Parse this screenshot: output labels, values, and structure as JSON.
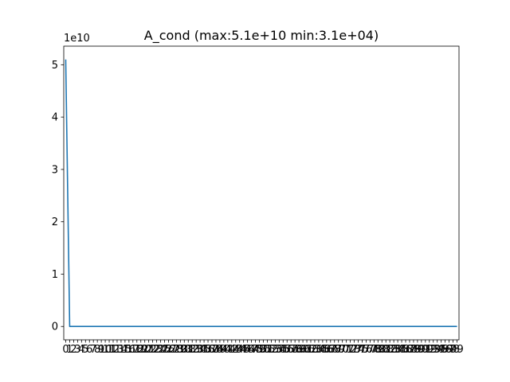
{
  "chart_data": {
    "type": "line",
    "title": "A_cond (max:5.1e+10 min:3.1e+04)",
    "xlabel": "",
    "ylabel": "",
    "y_offset_label": "1e10",
    "x": [
      0,
      1,
      2,
      3,
      4,
      5,
      6,
      7,
      8,
      9,
      10,
      11,
      12,
      13,
      14,
      15,
      16,
      17,
      18,
      19,
      20,
      21,
      22,
      23,
      24,
      25,
      26,
      27,
      28,
      29,
      30,
      31,
      32,
      33,
      34,
      35,
      36,
      37,
      38,
      39,
      40,
      41,
      42,
      43,
      44,
      45,
      46,
      47,
      48,
      49,
      50,
      51,
      52,
      53,
      54,
      55,
      56,
      57,
      58,
      59,
      60,
      61,
      62,
      63,
      64,
      65,
      66,
      67,
      68,
      69,
      70,
      71,
      72,
      73,
      74,
      75,
      76,
      77,
      78,
      79,
      80,
      81,
      82,
      83,
      84,
      85,
      86,
      87,
      88,
      89,
      90,
      91,
      92,
      93,
      94,
      95,
      96,
      97,
      98,
      99
    ],
    "x_tick_labels": [
      "0",
      "1",
      "2",
      "3",
      "4",
      "5",
      "6",
      "7",
      "8",
      "9",
      "10",
      "11",
      "12",
      "13",
      "14",
      "15",
      "16",
      "17",
      "18",
      "19",
      "20",
      "21",
      "22",
      "23",
      "24",
      "25",
      "26",
      "27",
      "28",
      "29",
      "30",
      "31",
      "32",
      "33",
      "34",
      "35",
      "36",
      "37",
      "38",
      "39",
      "40",
      "41",
      "42",
      "43",
      "44",
      "45",
      "46",
      "47",
      "48",
      "49",
      "50",
      "51",
      "52",
      "53",
      "54",
      "55",
      "56",
      "57",
      "58",
      "59",
      "60",
      "61",
      "62",
      "63",
      "64",
      "65",
      "66",
      "67",
      "68",
      "69",
      "70",
      "71",
      "72",
      "73",
      "74",
      "75",
      "76",
      "77",
      "78",
      "79",
      "80",
      "81",
      "82",
      "83",
      "84",
      "85",
      "86",
      "87",
      "88",
      "89",
      "90",
      "91",
      "92",
      "93",
      "94",
      "95",
      "96",
      "97",
      "98",
      "99"
    ],
    "y": [
      51000000000.0,
      31000,
      31000,
      31000,
      31000,
      31000,
      31000,
      31000,
      31000,
      31000,
      31000,
      31000,
      31000,
      31000,
      31000,
      31000,
      31000,
      31000,
      31000,
      31000,
      31000,
      31000,
      31000,
      31000,
      31000,
      31000,
      31000,
      31000,
      31000,
      31000,
      31000,
      31000,
      31000,
      31000,
      31000,
      31000,
      31000,
      31000,
      31000,
      31000,
      31000,
      31000,
      31000,
      31000,
      31000,
      31000,
      31000,
      31000,
      31000,
      31000,
      31000,
      31000,
      31000,
      31000,
      31000,
      31000,
      31000,
      31000,
      31000,
      31000,
      31000,
      31000,
      31000,
      31000,
      31000,
      31000,
      31000,
      31000,
      31000,
      31000,
      31000,
      31000,
      31000,
      31000,
      31000,
      31000,
      31000,
      31000,
      31000,
      31000,
      31000,
      31000,
      31000,
      31000,
      31000,
      31000,
      31000,
      31000,
      31000,
      31000,
      31000,
      31000,
      31000,
      31000,
      31000,
      31000,
      31000,
      31000,
      31000,
      31000
    ],
    "y_ticks": [
      0,
      10000000000.0,
      20000000000.0,
      30000000000.0,
      40000000000.0,
      50000000000.0
    ],
    "y_tick_labels": [
      "0",
      "1",
      "2",
      "3",
      "4",
      "5"
    ],
    "ylim": [
      -2550000000.0,
      53550000000.0
    ],
    "xlim": [
      -0.5,
      99.5
    ],
    "grid": false,
    "line_color": "#1f77b4"
  }
}
